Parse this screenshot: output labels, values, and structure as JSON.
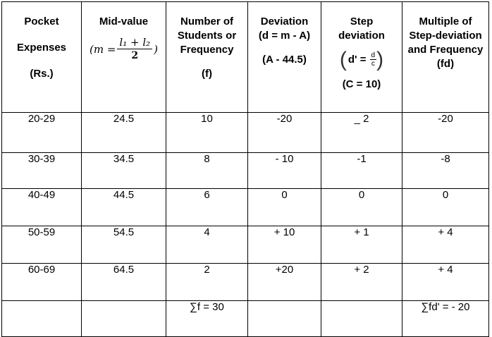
{
  "headers": {
    "pocket": {
      "line1": "Pocket",
      "line2": "Expenses",
      "line3": "(Rs.)"
    },
    "midvalue": {
      "title": "Mid-value",
      "formula_lhs": "(m =",
      "formula_num": "l₁ + l₂",
      "formula_den": "2",
      "formula_close": ")"
    },
    "frequency": {
      "line1": "Number of",
      "line2": "Students or",
      "line3": "Frequency",
      "line4": "(f)"
    },
    "deviation": {
      "line1": "Deviation",
      "line2": "(d = m - A)",
      "line3": "(A - 44.5)"
    },
    "step": {
      "line1": "Step",
      "line2": "deviation",
      "formula_lhs": "d' =",
      "formula_num": "d",
      "formula_den": "c",
      "line3": "(C = 10)"
    },
    "multiple": {
      "line1": "Multiple of",
      "line2": "Step-deviation",
      "line3": "and Frequency",
      "line4": "(fd)"
    }
  },
  "rows": [
    {
      "pocket": "20-29",
      "mid": "24.5",
      "freq": "10",
      "dev": "-20",
      "step": "_ 2",
      "fd": "-20"
    },
    {
      "pocket": "30-39",
      "mid": "34.5",
      "freq": "8",
      "dev": "- 10",
      "step": "-1",
      "fd": "-8"
    },
    {
      "pocket": "40-49",
      "mid": "44.5",
      "freq": "6",
      "dev": "0",
      "step": "0",
      "fd": "0"
    },
    {
      "pocket": "50-59",
      "mid": "54.5",
      "freq": "4",
      "dev": "+ 10",
      "step": "+ 1",
      "fd": "+ 4"
    },
    {
      "pocket": "60-69",
      "mid": "64.5",
      "freq": "2",
      "dev": "+20",
      "step": "+ 2",
      "fd": "+ 4"
    }
  ],
  "totals": {
    "freq": "∑f = 30",
    "fd": "∑fd' = - 20"
  }
}
